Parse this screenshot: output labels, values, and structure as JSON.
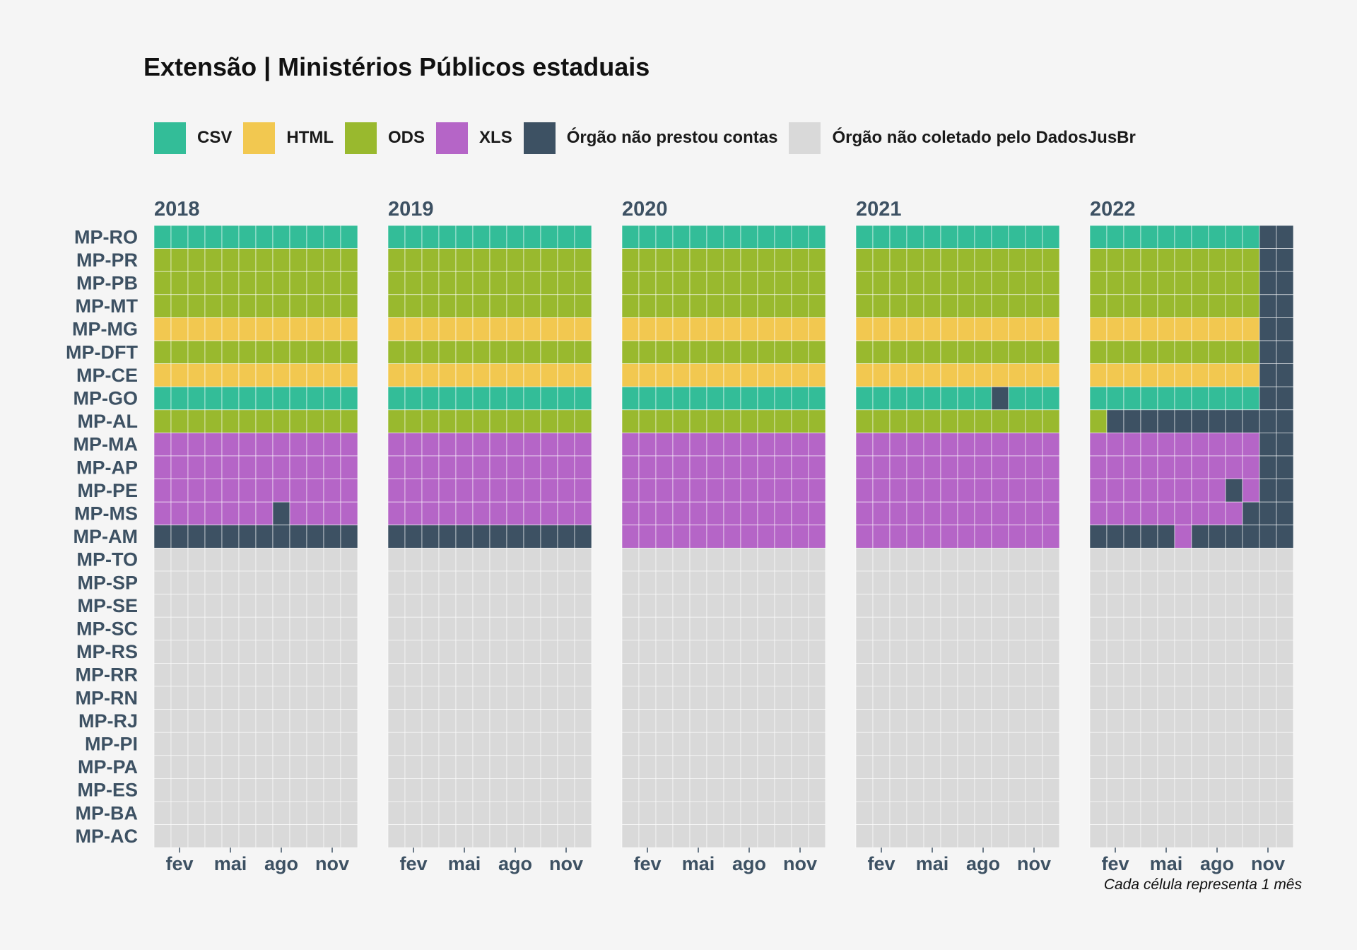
{
  "chart_data": {
    "type": "heatmap",
    "title": "Extensão | Ministérios Públicos estaduais",
    "caption": "Cada célula representa 1 mês",
    "colors": {
      "CSV": "#33bd98",
      "HTML": "#f2c850",
      "ODS": "#99b92e",
      "XLS": "#b565c7",
      "NAO_PRESTOU": "#3d5163",
      "NAO_COLETADO": "#d9d9d9",
      "axis_text": "#3d5163",
      "background": "#f5f5f5"
    },
    "legend": [
      {
        "key": "CSV",
        "label": "CSV"
      },
      {
        "key": "HTML",
        "label": "HTML"
      },
      {
        "key": "ODS",
        "label": "ODS"
      },
      {
        "key": "XLS",
        "label": "XLS"
      },
      {
        "key": "NAO_PRESTOU",
        "label": "Órgão não prestou contas"
      },
      {
        "key": "NAO_COLETADO",
        "label": "Órgão não coletado pelo DadosJusBr"
      }
    ],
    "years": [
      "2018",
      "2019",
      "2020",
      "2021",
      "2022"
    ],
    "month_ticks": [
      "fev",
      "mai",
      "ago",
      "nov"
    ],
    "month_tick_index": [
      1,
      4,
      7,
      10
    ],
    "orgs": [
      "MP-RO",
      "MP-PR",
      "MP-PB",
      "MP-MT",
      "MP-MG",
      "MP-DFT",
      "MP-CE",
      "MP-GO",
      "MP-AL",
      "MP-MA",
      "MP-AP",
      "MP-PE",
      "MP-MS",
      "MP-AM",
      "MP-TO",
      "MP-SP",
      "MP-SE",
      "MP-SC",
      "MP-RS",
      "MP-RR",
      "MP-RN",
      "MP-RJ",
      "MP-PI",
      "MP-PA",
      "MP-ES",
      "MP-BA",
      "MP-AC"
    ],
    "codes": {
      "C": "CSV",
      "H": "HTML",
      "O": "ODS",
      "X": "XLS",
      "N": "NAO_PRESTOU",
      "G": "NAO_COLETADO"
    },
    "data": {
      "2018": {
        "MP-RO": "CCCCCCCCCCCC",
        "MP-PR": "OOOOOOOOOOOO",
        "MP-PB": "OOOOOOOOOOOO",
        "MP-MT": "OOOOOOOOOOOO",
        "MP-MG": "HHHHHHHHHHHH",
        "MP-DFT": "OOOOOOOOOOOO",
        "MP-CE": "HHHHHHHHHHHH",
        "MP-GO": "CCCCCCCCCCCC",
        "MP-AL": "OOOOOOOOOOOO",
        "MP-MA": "XXXXXXXXXXXX",
        "MP-AP": "XXXXXXXXXXXX",
        "MP-PE": "XXXXXXXXXXXX",
        "MP-MS": "XXXXXXXNXXXX",
        "MP-AM": "NNNNNNNNNNNN",
        "default": "GGGGGGGGGGGG"
      },
      "2019": {
        "MP-RO": "CCCCCCCCCCCC",
        "MP-PR": "OOOOOOOOOOOO",
        "MP-PB": "OOOOOOOOOOOO",
        "MP-MT": "OOOOOOOOOOOO",
        "MP-MG": "HHHHHHHHHHHH",
        "MP-DFT": "OOOOOOOOOOOO",
        "MP-CE": "HHHHHHHHHHHH",
        "MP-GO": "CCCCCCCCCCCC",
        "MP-AL": "OOOOOOOOOOOO",
        "MP-MA": "XXXXXXXXXXXX",
        "MP-AP": "XXXXXXXXXXXX",
        "MP-PE": "XXXXXXXXXXXX",
        "MP-MS": "XXXXXXXXXXXX",
        "MP-AM": "NNNNNNNNNNNN",
        "default": "GGGGGGGGGGGG"
      },
      "2020": {
        "MP-RO": "CCCCCCCCCCCC",
        "MP-PR": "OOOOOOOOOOOO",
        "MP-PB": "OOOOOOOOOOOO",
        "MP-MT": "OOOOOOOOOOOO",
        "MP-MG": "HHHHHHHHHHHH",
        "MP-DFT": "OOOOOOOOOOOO",
        "MP-CE": "HHHHHHHHHHHH",
        "MP-GO": "CCCCCCCCCCCC",
        "MP-AL": "OOOOOOOOOOOO",
        "MP-MA": "XXXXXXXXXXXX",
        "MP-AP": "XXXXXXXXXXXX",
        "MP-PE": "XXXXXXXXXXXX",
        "MP-MS": "XXXXXXXXXXXX",
        "MP-AM": "XXXXXXXXXXXX",
        "default": "GGGGGGGGGGGG"
      },
      "2021": {
        "MP-RO": "CCCCCCCCCCCC",
        "MP-PR": "OOOOOOOOOOOO",
        "MP-PB": "OOOOOOOOOOOO",
        "MP-MT": "OOOOOOOOOOOO",
        "MP-MG": "HHHHHHHHHHHH",
        "MP-DFT": "OOOOOOOOOOOO",
        "MP-CE": "HHHHHHHHHHHH",
        "MP-GO": "CCCCCCCCNCCC",
        "MP-AL": "OOOOOOOOOOOO",
        "MP-MA": "XXXXXXXXXXXX",
        "MP-AP": "XXXXXXXXXXXX",
        "MP-PE": "XXXXXXXXXXXX",
        "MP-MS": "XXXXXXXXXXXX",
        "MP-AM": "XXXXXXXXXXXX",
        "default": "GGGGGGGGGGGG"
      },
      "2022": {
        "MP-RO": "CCCCCCCCCCNN",
        "MP-PR": "OOOOOOOOOONN",
        "MP-PB": "OOOOOOOOOONN",
        "MP-MT": "OOOOOOOOOONN",
        "MP-MG": "HHHHHHHHHHNN",
        "MP-DFT": "OOOOOOOOOONN",
        "MP-CE": "HHHHHHHHHHNN",
        "MP-GO": "CCCCCCCCCCNN",
        "MP-AL": "ONNNNNNNNNNN",
        "MP-MA": "XXXXXXXXXXNN",
        "MP-AP": "XXXXXXXXXXNN",
        "MP-PE": "XXXXXXXXNXNN",
        "MP-MS": "XXXXXXXXXNNN",
        "MP-AM": "NNNNNXNNNNNN",
        "default": "GGGGGGGGGGGG"
      }
    }
  }
}
